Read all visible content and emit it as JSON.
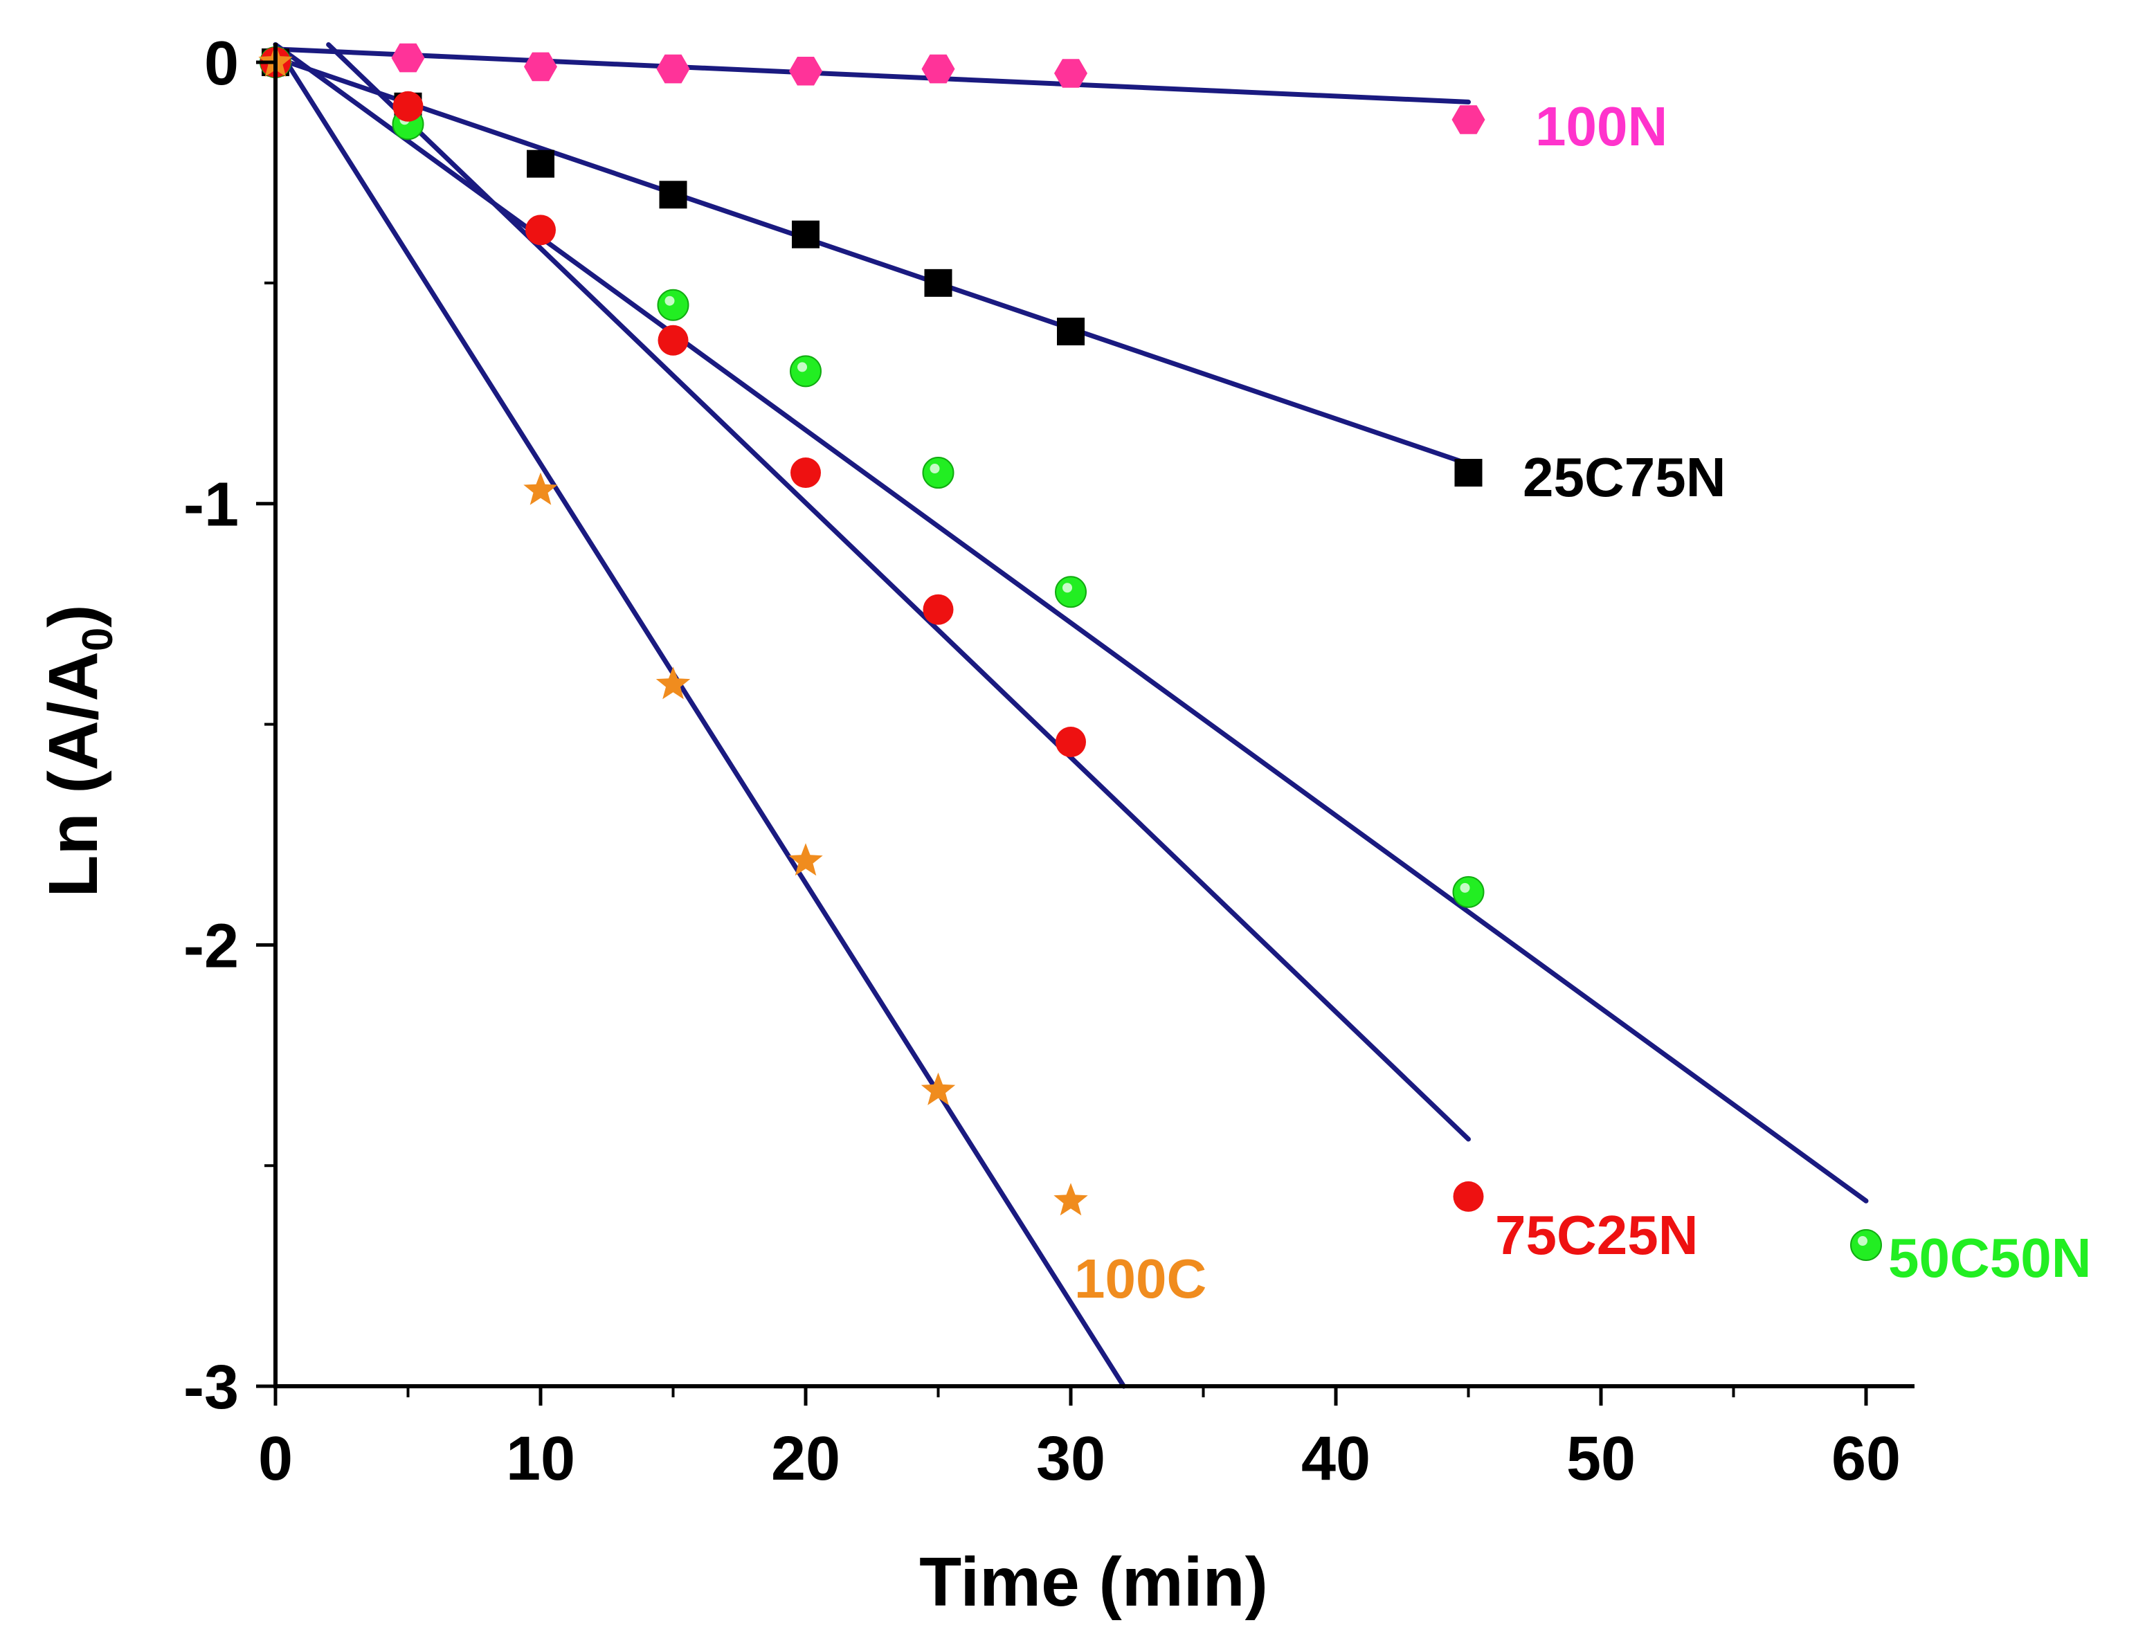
{
  "chart_data": {
    "type": "scatter",
    "title": "",
    "xlabel": "Time (min)",
    "ylabel_main": "Ln (A/A",
    "ylabel_sub": "0",
    "ylabel_close": ")",
    "xlim": [
      0,
      62
    ],
    "ylim": [
      -3,
      0.1
    ],
    "x_ticks": [
      0,
      10,
      20,
      30,
      40,
      50,
      60
    ],
    "x_tick_labels": [
      "0",
      "10",
      "20",
      "30",
      "40",
      "50",
      "60"
    ],
    "y_ticks": [
      0,
      -1,
      -2,
      -3
    ],
    "y_tick_labels": [
      "0",
      "-1",
      "-2",
      "-3"
    ],
    "line_color": "#1a1a80",
    "series": [
      {
        "name": "100N",
        "label": "100N",
        "marker": "hexagon",
        "color": "#ff3399",
        "x": [
          0,
          5,
          10,
          15,
          20,
          25,
          30,
          45
        ],
        "y": [
          0,
          0.01,
          -0.01,
          -0.015,
          -0.02,
          -0.015,
          -0.025,
          -0.13
        ],
        "fit": {
          "x": [
            0,
            45
          ],
          "y": [
            0.03,
            -0.09
          ]
        }
      },
      {
        "name": "25C75N",
        "label": "25C75N",
        "marker": "square",
        "color": "#000000",
        "x": [
          0,
          5,
          10,
          15,
          20,
          25,
          30,
          45
        ],
        "y": [
          0,
          -0.1,
          -0.23,
          -0.3,
          -0.39,
          -0.5,
          -0.61,
          -0.93
        ],
        "fit": {
          "x": [
            0,
            45
          ],
          "y": [
            0.01,
            -0.91
          ]
        }
      },
      {
        "name": "50C50N",
        "label": "50C50N",
        "marker": "sphere",
        "color": "#22ee22",
        "x": [
          0,
          5,
          15,
          20,
          25,
          30,
          45,
          60
        ],
        "y": [
          0,
          -0.14,
          -0.55,
          -0.7,
          -0.93,
          -1.2,
          -1.88,
          -2.68
        ],
        "fit": {
          "x": [
            0,
            60
          ],
          "y": [
            0.04,
            -2.58
          ]
        }
      },
      {
        "name": "75C25N",
        "label": "75C25N",
        "marker": "circle",
        "color": "#ee1111",
        "x": [
          0,
          5,
          10,
          15,
          20,
          25,
          30,
          45
        ],
        "y": [
          0,
          -0.1,
          -0.38,
          -0.63,
          -0.93,
          -1.24,
          -1.54,
          -2.57
        ],
        "fit": {
          "x": [
            2,
            45
          ],
          "y": [
            0.04,
            -2.44
          ]
        }
      },
      {
        "name": "100C",
        "label": "100C",
        "marker": "star",
        "color": "#f08c1e",
        "x": [
          0,
          10,
          15,
          20,
          25,
          30
        ],
        "y": [
          0,
          -0.97,
          -1.41,
          -1.81,
          -2.33,
          -2.58
        ],
        "fit": {
          "x": [
            0,
            32
          ],
          "y": [
            0.04,
            -3.0
          ]
        }
      }
    ]
  }
}
